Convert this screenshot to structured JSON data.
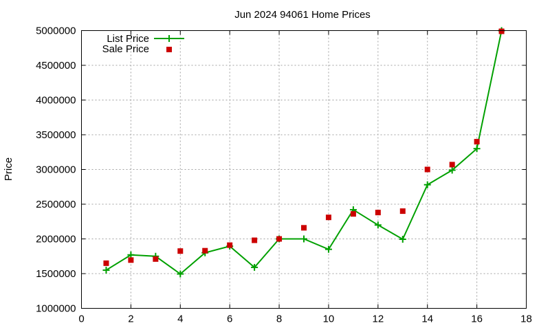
{
  "chart_data": {
    "type": "line",
    "title": "Jun 2024 94061 Home Prices",
    "xlabel": "",
    "ylabel": "Price",
    "xlim": [
      0,
      18
    ],
    "ylim": [
      1000000,
      5000000
    ],
    "x_ticks": [
      0,
      2,
      4,
      6,
      8,
      10,
      12,
      14,
      16,
      18
    ],
    "y_ticks": [
      1000000,
      1500000,
      2000000,
      2500000,
      3000000,
      3500000,
      4000000,
      4500000,
      5000000
    ],
    "grid": true,
    "legend_position": "top-left",
    "series": [
      {
        "name": "List Price",
        "style": "line-with-plus-markers",
        "color": "#00a000",
        "x": [
          1,
          2,
          3,
          4,
          5,
          6,
          7,
          8,
          9,
          10,
          11,
          12,
          13,
          14,
          15,
          16,
          17
        ],
        "y": [
          1550000,
          1770000,
          1750000,
          1495000,
          1800000,
          1895000,
          1590000,
          2000000,
          2000000,
          1850000,
          2420000,
          2200000,
          1995000,
          2780000,
          2990000,
          3300000,
          5000000
        ]
      },
      {
        "name": "Sale Price",
        "style": "square-markers",
        "color": "#cc0000",
        "x": [
          1,
          2,
          3,
          4,
          5,
          6,
          7,
          8,
          9,
          10,
          11,
          12,
          13,
          14,
          15,
          16,
          17
        ],
        "y": [
          1650000,
          1695000,
          1710000,
          1825000,
          1830000,
          1910000,
          1980000,
          2000000,
          2160000,
          2310000,
          2360000,
          2380000,
          2400000,
          3000000,
          3070000,
          3400000,
          4990000
        ]
      }
    ]
  }
}
